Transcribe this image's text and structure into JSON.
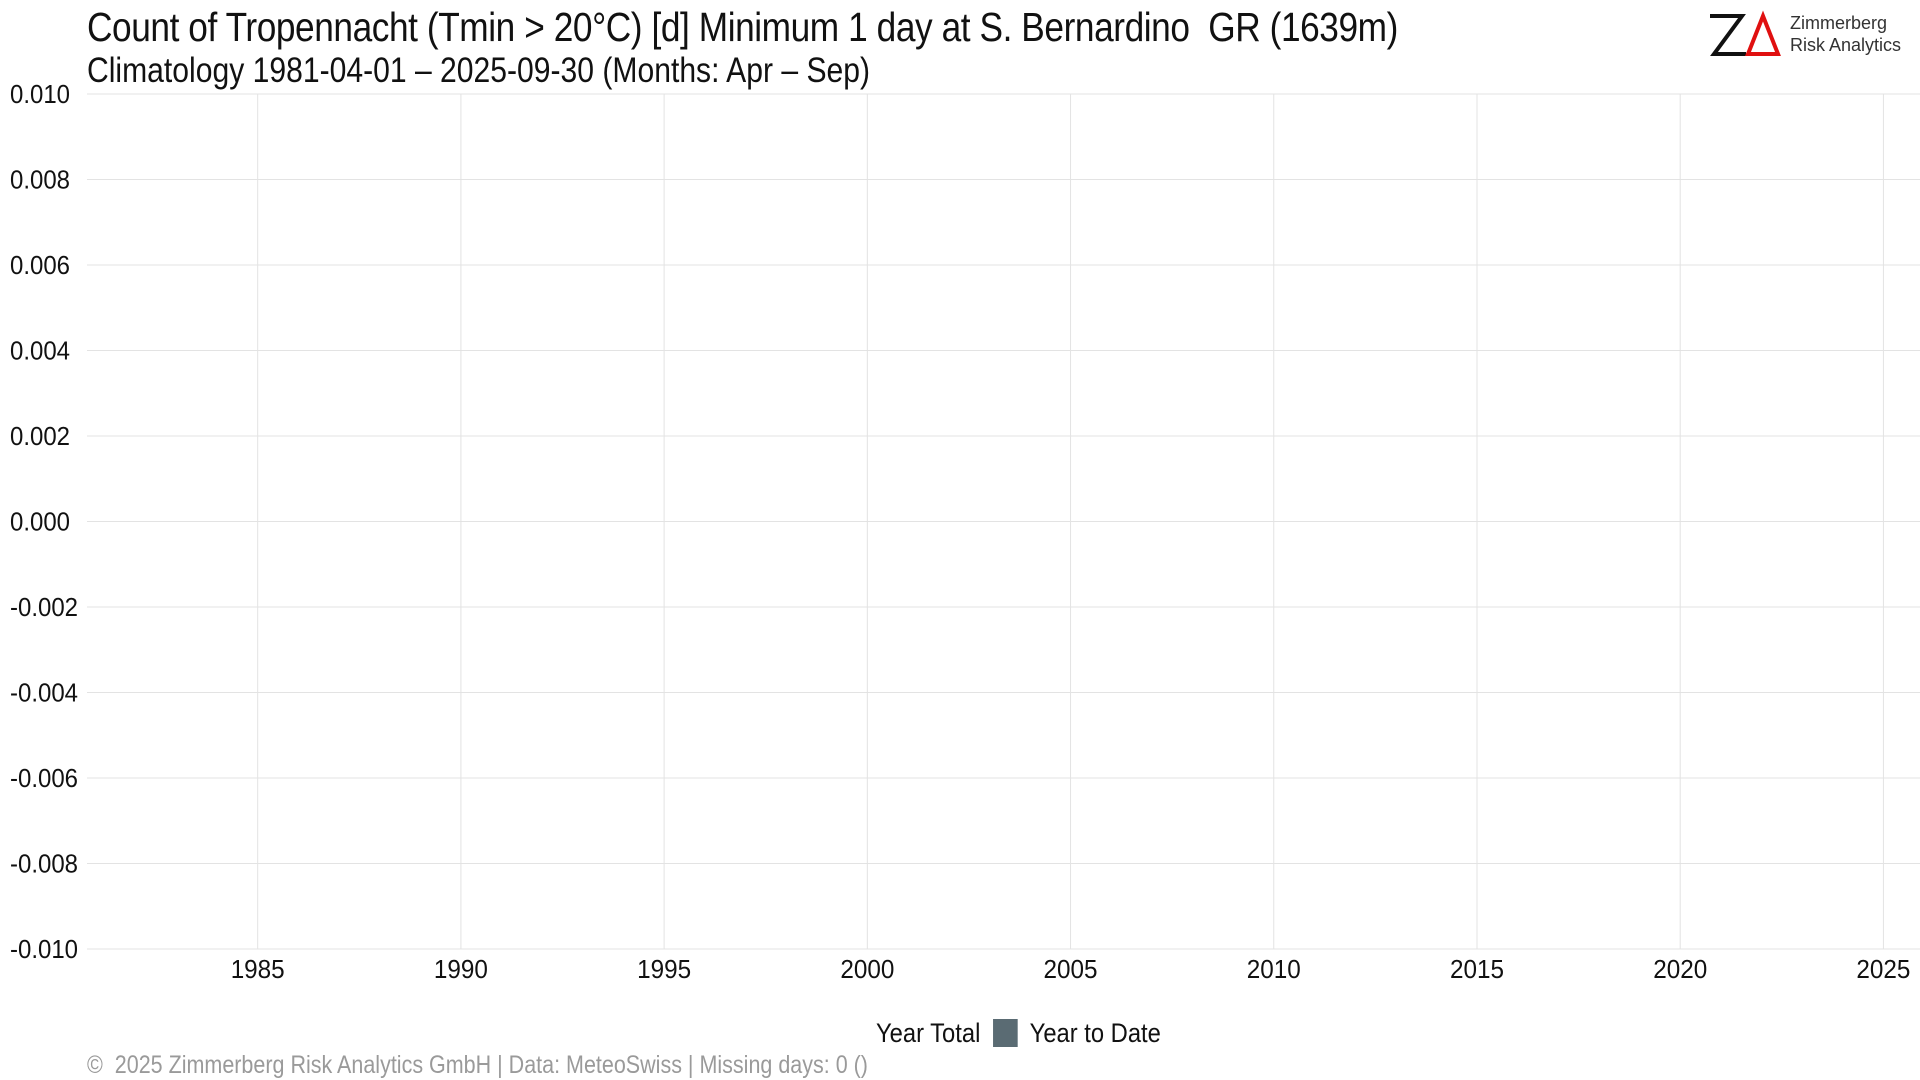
{
  "title": "Count of Tropennacht (Tmin > 20°C) [d] Minimum 1 day at S. Bernardino  GR (1639m)",
  "subtitle": "Climatology 1981-04-01 – 2025-09-30 (Months: Apr – Sep)",
  "logo": {
    "line1": "Zimmerberg",
    "line2": "Risk Analytics",
    "mark_color": "#111111",
    "accent_color": "#e01010"
  },
  "legend": {
    "items": [
      {
        "label": "Year Total",
        "swatch": null
      },
      {
        "label": "Year to Date",
        "swatch": "#5a6b73"
      }
    ]
  },
  "footer": "©  2025 Zimmerberg Risk Analytics GmbH | Data: MeteoSwiss | Missing days: 0 ()",
  "chart_data": {
    "type": "bar",
    "title": "Count of Tropennacht (Tmin > 20°C) [d] Minimum 1 day at S. Bernardino  GR (1639m)",
    "subtitle": "Climatology 1981-04-01 – 2025-09-30 (Months: Apr – Sep)",
    "xlabel": "",
    "ylabel": "",
    "xlim": [
      1980.8,
      2025.9
    ],
    "ylim": [
      -0.01,
      0.01
    ],
    "x_ticks": [
      1985,
      1990,
      1995,
      2000,
      2005,
      2010,
      2015,
      2020,
      2025
    ],
    "x_tick_labels": [
      "1985",
      "1990",
      "1995",
      "2000",
      "2005",
      "2010",
      "2015",
      "2020",
      "2025"
    ],
    "y_ticks": [
      -0.01,
      -0.008,
      -0.006,
      -0.004,
      -0.002,
      0,
      0.002,
      0.004,
      0.006,
      0.008,
      0.01
    ],
    "y_tick_labels": [
      "-0.010",
      "-0.008",
      "-0.006",
      "-0.004",
      "-0.002",
      "0.000",
      "0.002",
      "0.004",
      "0.006",
      "0.008",
      "0.010"
    ],
    "grid": true,
    "legend_position": "bottom",
    "series": [
      {
        "name": "Year Total",
        "color": "#ffffff",
        "values": []
      },
      {
        "name": "Year to Date",
        "color": "#5a6b73",
        "values": []
      }
    ],
    "colors": {
      "grid": "#e3e3e3",
      "text": "#111111",
      "footer_text": "#9a9a9a",
      "year_to_date": "#5a6b73"
    }
  }
}
